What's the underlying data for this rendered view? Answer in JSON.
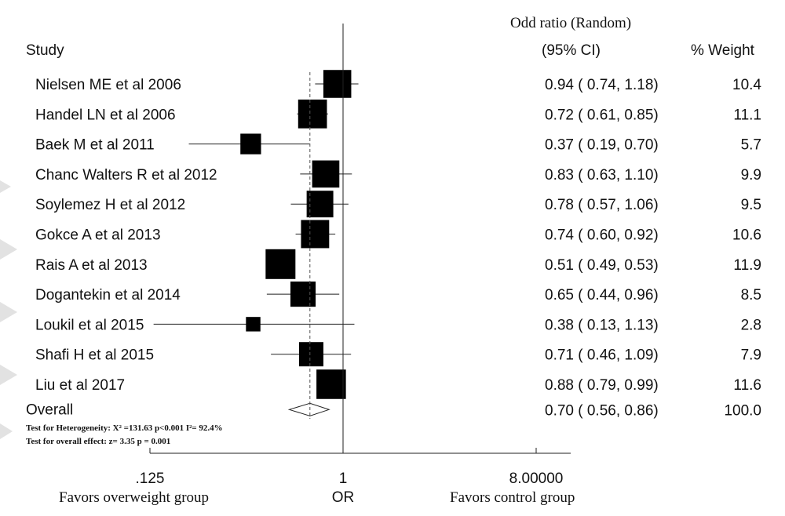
{
  "chart_data": {
    "type": "forest",
    "header": {
      "measure": "Odd ratio (Random)",
      "ci": "(95% CI)",
      "study": "Study",
      "weight": "% Weight"
    },
    "studies": [
      {
        "label": "Nielsen ME et al 2006",
        "or": 0.94,
        "lo": 0.74,
        "hi": 1.18,
        "weight": 10.4,
        "ci_text": "0.94 ( 0.74, 1.18)",
        "weight_text": "10.4"
      },
      {
        "label": "Handel LN et al  2006",
        "or": 0.72,
        "lo": 0.61,
        "hi": 0.85,
        "weight": 11.1,
        "ci_text": "0.72 ( 0.61, 0.85)",
        "weight_text": "11.1"
      },
      {
        "label": "Baek M et al 2011",
        "or": 0.37,
        "lo": 0.19,
        "hi": 0.7,
        "weight": 5.7,
        "ci_text": "0.37 ( 0.19, 0.70)",
        "weight_text": "5.7"
      },
      {
        "label": "Chanc Walters R et al  2012",
        "or": 0.83,
        "lo": 0.63,
        "hi": 1.1,
        "weight": 9.9,
        "ci_text": "0.83 ( 0.63, 1.10)",
        "weight_text": "9.9"
      },
      {
        "label": "Soylemez H et al 2012",
        "or": 0.78,
        "lo": 0.57,
        "hi": 1.06,
        "weight": 9.5,
        "ci_text": "0.78 ( 0.57, 1.06)",
        "weight_text": "9.5"
      },
      {
        "label": "Gokce A et al  2013",
        "or": 0.74,
        "lo": 0.6,
        "hi": 0.92,
        "weight": 10.6,
        "ci_text": "0.74 ( 0.60, 0.92)",
        "weight_text": "10.6"
      },
      {
        "label": "Rais A et al  2013",
        "or": 0.51,
        "lo": 0.49,
        "hi": 0.53,
        "weight": 11.9,
        "ci_text": "0.51 ( 0.49, 0.53)",
        "weight_text": "11.9"
      },
      {
        "label": "Dogantekin et al 2014",
        "or": 0.65,
        "lo": 0.44,
        "hi": 0.96,
        "weight": 8.5,
        "ci_text": "0.65 ( 0.44, 0.96)",
        "weight_text": "8.5"
      },
      {
        "label": "Loukil et al 2015",
        "or": 0.38,
        "lo": 0.13,
        "hi": 1.13,
        "weight": 2.8,
        "ci_text": "0.38 ( 0.13, 1.13)",
        "weight_text": "2.8"
      },
      {
        "label": "Shafi H et al  2015",
        "or": 0.71,
        "lo": 0.46,
        "hi": 1.09,
        "weight": 7.9,
        "ci_text": "0.71 ( 0.46, 1.09)",
        "weight_text": "7.9"
      },
      {
        "label": "Liu et al 2017",
        "or": 0.88,
        "lo": 0.79,
        "hi": 0.99,
        "weight": 11.6,
        "ci_text": "0.88 ( 0.79, 0.99)",
        "weight_text": "11.6"
      }
    ],
    "overall": {
      "label": "Overall",
      "or": 0.7,
      "lo": 0.56,
      "hi": 0.86,
      "weight": 100.0,
      "ci_text": "0.70 ( 0.56, 0.86)",
      "weight_text": "100.0"
    },
    "notes": {
      "heterogeneity": "Test for Heterogeneity: X² =131.63 p<0.001 I²= 92.4%",
      "overall_effect": "Test for overall effect:  z= 3.35 p = 0.001"
    },
    "x_axis": {
      "scale": "log",
      "ticks": [
        {
          "value": 0.125,
          "label": ".125"
        },
        {
          "value": 1,
          "label": "1"
        },
        {
          "value": 8,
          "label": "8.00000"
        }
      ],
      "label": "OR",
      "left_caption": "Favors  overweight group",
      "right_caption": "Favors  control group"
    },
    "line_of_no_effect": 1,
    "pooled_reference": 0.7
  }
}
